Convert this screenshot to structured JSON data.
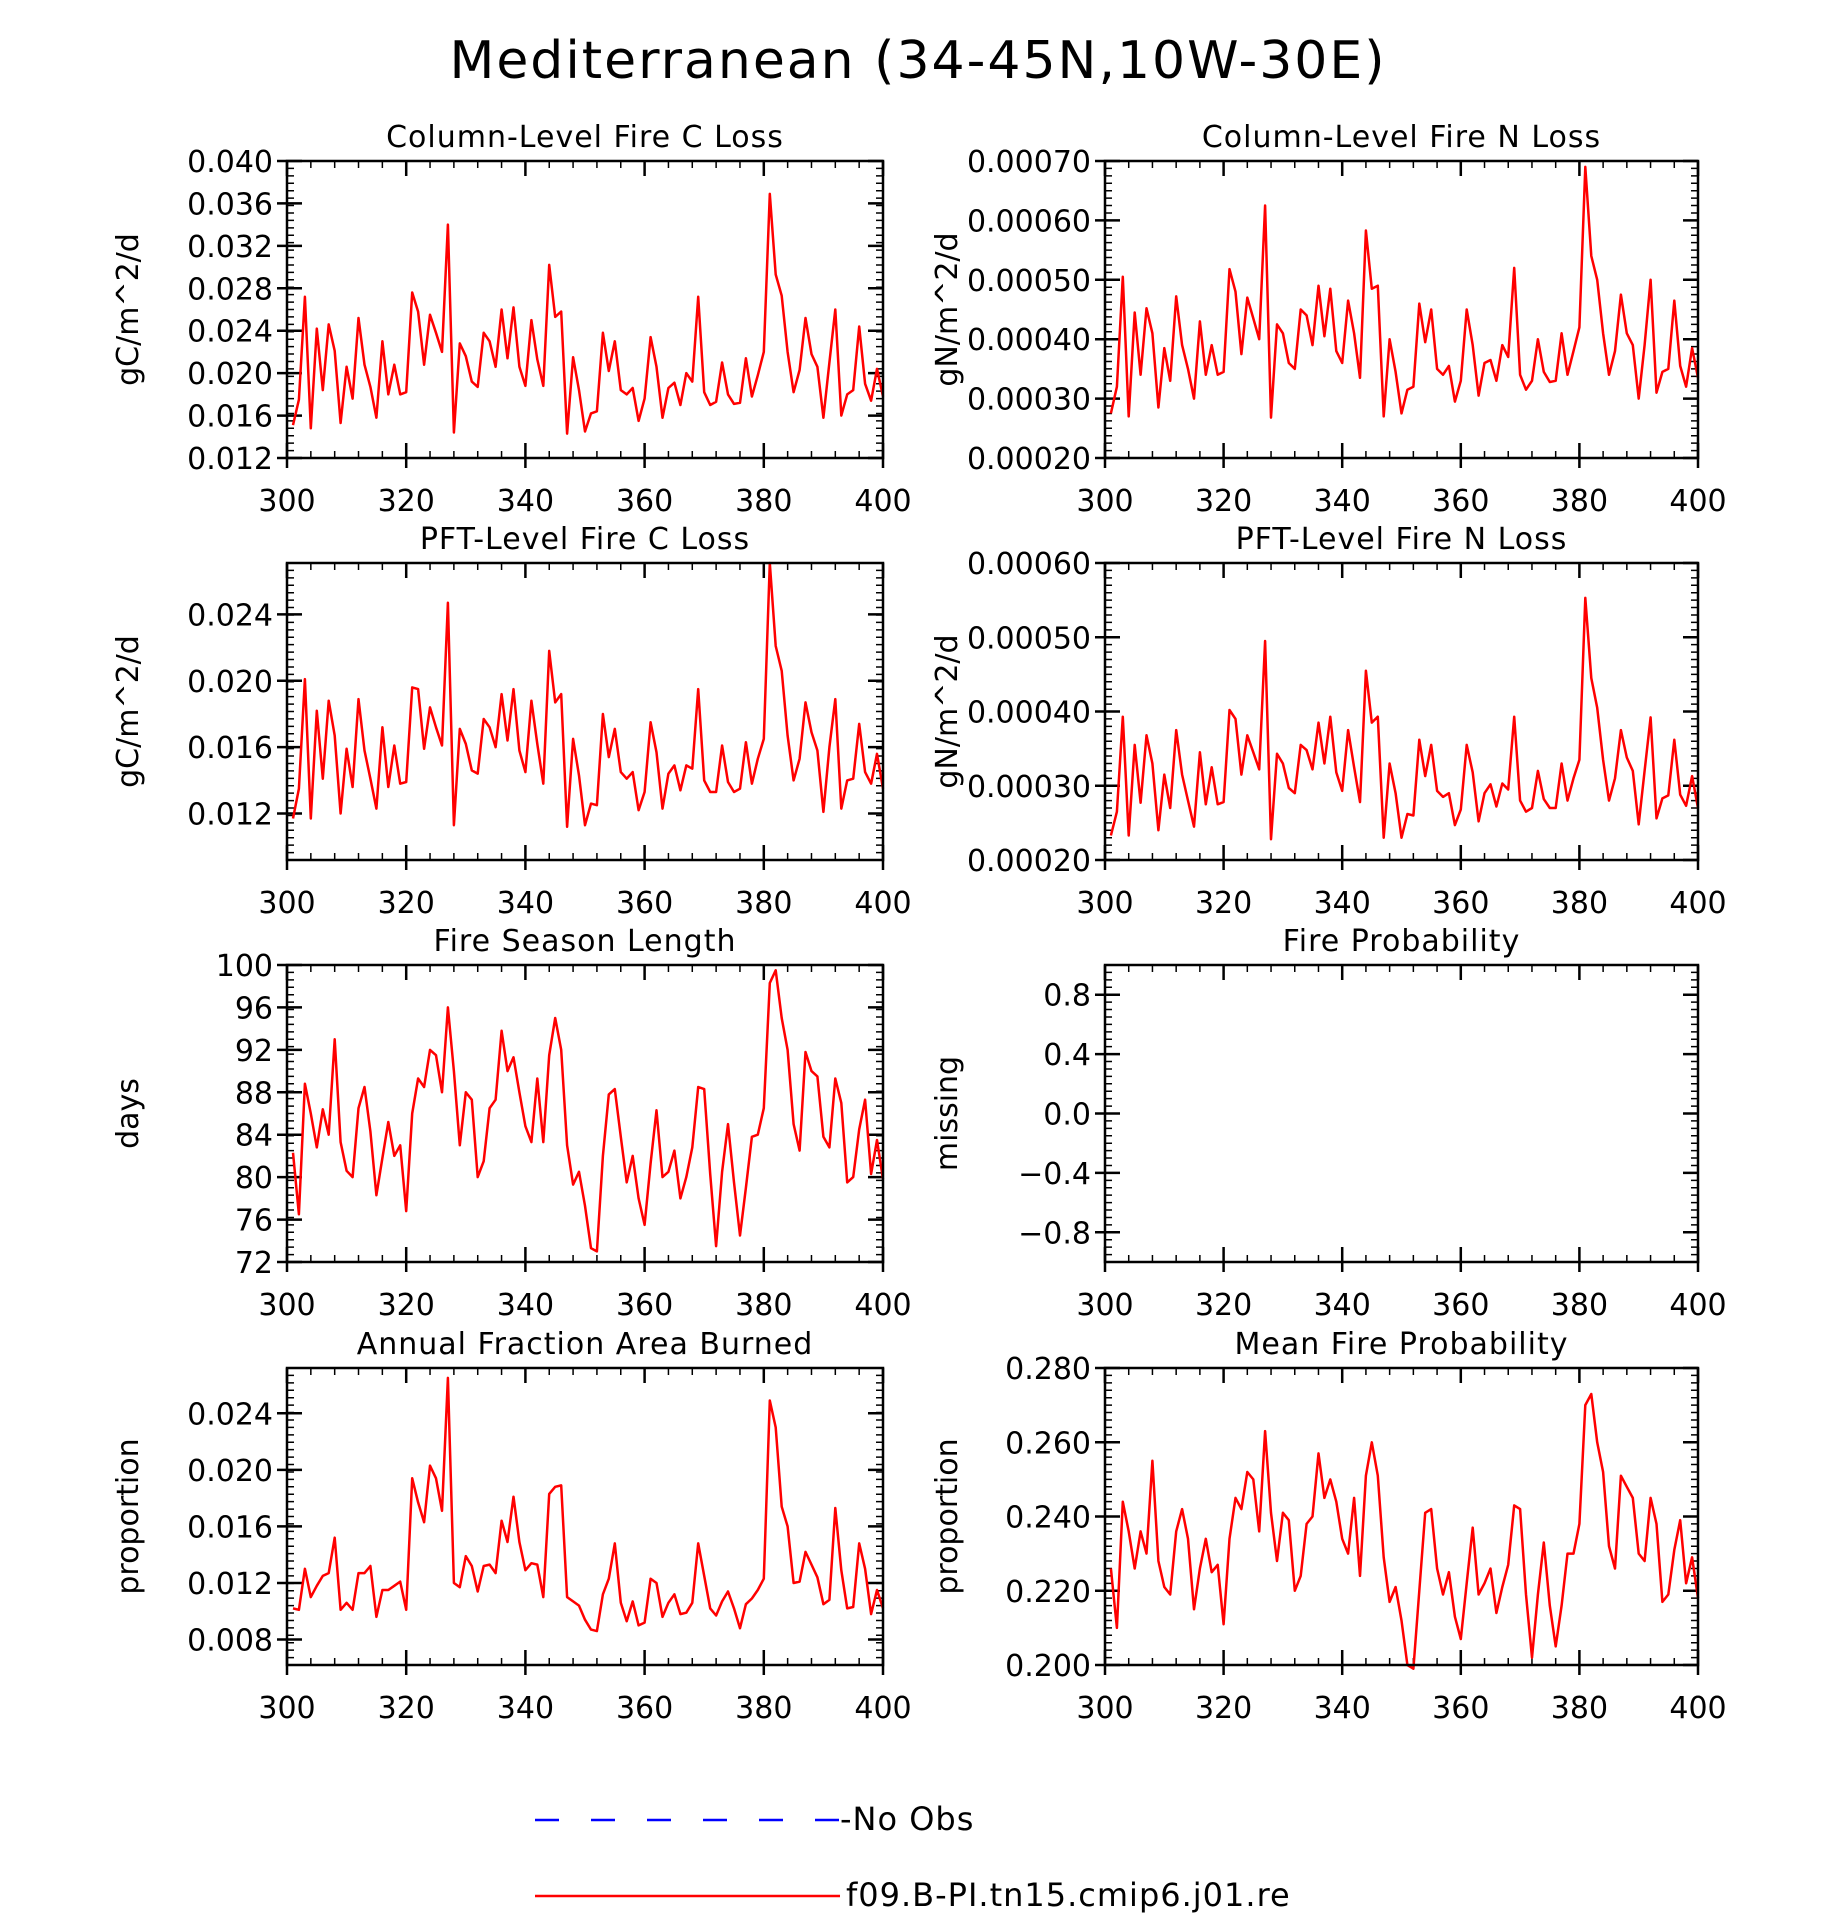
{
  "figure": {
    "title": "Mediterranean (34-45N,10W-30E)",
    "colors": {
      "model_line": "#ff0000",
      "obs_line": "#0000ff",
      "axis": "#000000"
    }
  },
  "legend": {
    "entries": [
      {
        "label": "-No Obs",
        "color": "#0000ff",
        "style": "dashed"
      },
      {
        "label": "f09.B-PI.tn15.cmip6.j01.re",
        "color": "#ff0000",
        "style": "solid"
      }
    ]
  },
  "chart_data": [
    {
      "type": "line",
      "title": "Column-Level Fire C Loss",
      "ylabel": "gC/m^2/d",
      "xlim": [
        300,
        400
      ],
      "xticks": [
        300,
        320,
        340,
        360,
        380,
        400
      ],
      "ylim": [
        0.012,
        0.04
      ],
      "yticks": [
        "0.012",
        "0.016",
        "0.020",
        "0.024",
        "0.028",
        "0.032",
        "0.036",
        "0.040"
      ],
      "x_start": 301,
      "series": [
        {
          "name": "f09.B-PI.tn15.cmip6.j01.re",
          "values": [
            0.0151,
            0.0175,
            0.0272,
            0.0148,
            0.0242,
            0.0184,
            0.0246,
            0.0221,
            0.0153,
            0.0206,
            0.0176,
            0.0252,
            0.0208,
            0.0187,
            0.0158,
            0.023,
            0.018,
            0.0208,
            0.018,
            0.0182,
            0.0276,
            0.0258,
            0.0208,
            0.0255,
            0.0238,
            0.022,
            0.034,
            0.0144,
            0.0228,
            0.0216,
            0.0192,
            0.0187,
            0.0238,
            0.023,
            0.0206,
            0.026,
            0.0214,
            0.0262,
            0.0206,
            0.0188,
            0.025,
            0.0213,
            0.0188,
            0.0302,
            0.0253,
            0.0258,
            0.0143,
            0.0215,
            0.0184,
            0.0145,
            0.0162,
            0.0164,
            0.0238,
            0.0202,
            0.023,
            0.0184,
            0.018,
            0.0186,
            0.0155,
            0.0176,
            0.0234,
            0.0206,
            0.0158,
            0.0186,
            0.0191,
            0.017,
            0.02,
            0.0192,
            0.0272,
            0.0182,
            0.017,
            0.0173,
            0.021,
            0.018,
            0.0171,
            0.0172,
            0.0214,
            0.0178,
            0.0198,
            0.022,
            0.0369,
            0.0293,
            0.0273,
            0.022,
            0.0182,
            0.0203,
            0.0252,
            0.0218,
            0.0206,
            0.0158,
            0.021,
            0.026,
            0.016,
            0.018,
            0.0184,
            0.0244,
            0.019,
            0.0174,
            0.0204,
            0.0178
          ]
        }
      ]
    },
    {
      "type": "line",
      "title": "Column-Level Fire N Loss",
      "ylabel": "gN/m^2/d",
      "xlim": [
        300,
        400
      ],
      "xticks": [
        300,
        320,
        340,
        360,
        380,
        400
      ],
      "ylim": [
        0.0002,
        0.0007
      ],
      "yticks": [
        "0.00020",
        "0.00030",
        "0.00040",
        "0.00050",
        "0.00060",
        "0.00070"
      ],
      "x_start": 301,
      "series": [
        {
          "name": "f09.B-PI.tn15.cmip6.j01.re",
          "values": [
            0.000275,
            0.00032,
            0.000505,
            0.00027,
            0.000445,
            0.00034,
            0.000452,
            0.00041,
            0.000285,
            0.000385,
            0.00033,
            0.000472,
            0.00039,
            0.00035,
            0.0003,
            0.00043,
            0.00034,
            0.00039,
            0.00034,
            0.000345,
            0.000518,
            0.00048,
            0.000375,
            0.00047,
            0.000435,
            0.0004,
            0.000625,
            0.000268,
            0.000425,
            0.00041,
            0.00036,
            0.00035,
            0.00045,
            0.00044,
            0.00039,
            0.00049,
            0.000405,
            0.000485,
            0.00038,
            0.00036,
            0.000465,
            0.00041,
            0.000335,
            0.000583,
            0.000485,
            0.00049,
            0.00027,
            0.0004,
            0.000345,
            0.000275,
            0.000315,
            0.00032,
            0.00046,
            0.000395,
            0.00045,
            0.00035,
            0.00034,
            0.000355,
            0.000295,
            0.00033,
            0.00045,
            0.00039,
            0.000305,
            0.00036,
            0.000365,
            0.00033,
            0.00039,
            0.00037,
            0.00052,
            0.00034,
            0.000315,
            0.00033,
            0.0004,
            0.000345,
            0.000328,
            0.00033,
            0.00041,
            0.00034,
            0.00038,
            0.00042,
            0.00069,
            0.00054,
            0.0005,
            0.00041,
            0.00034,
            0.00038,
            0.000475,
            0.00041,
            0.00039,
            0.0003,
            0.00039,
            0.0005,
            0.00031,
            0.000345,
            0.00035,
            0.000465,
            0.000355,
            0.00032,
            0.000385,
            0.000335
          ]
        }
      ]
    },
    {
      "type": "line",
      "title": "PFT-Level Fire C Loss",
      "ylabel": "gC/m^2/d",
      "xlim": [
        300,
        400
      ],
      "xticks": [
        300,
        320,
        340,
        360,
        380,
        400
      ],
      "ylim": [
        0.0092,
        0.0271
      ],
      "yticks": [
        "0.012",
        "0.016",
        "0.020",
        "0.024"
      ],
      "x_start": 301,
      "series": [
        {
          "name": "f09.B-PI.tn15.cmip6.j01.re",
          "values": [
            0.0117,
            0.0135,
            0.0201,
            0.0117,
            0.0182,
            0.0141,
            0.0188,
            0.0167,
            0.012,
            0.0159,
            0.0136,
            0.0189,
            0.0158,
            0.0141,
            0.0123,
            0.0172,
            0.0136,
            0.0161,
            0.0138,
            0.0139,
            0.0196,
            0.0195,
            0.0159,
            0.0184,
            0.0172,
            0.0161,
            0.0247,
            0.0113,
            0.0171,
            0.0162,
            0.0146,
            0.0144,
            0.0177,
            0.0172,
            0.016,
            0.0192,
            0.0164,
            0.0195,
            0.0158,
            0.0145,
            0.0188,
            0.0162,
            0.0138,
            0.0218,
            0.0187,
            0.0192,
            0.0112,
            0.0165,
            0.0143,
            0.0113,
            0.0126,
            0.0125,
            0.018,
            0.0154,
            0.0171,
            0.0145,
            0.0141,
            0.0145,
            0.0122,
            0.0133,
            0.0175,
            0.0157,
            0.0123,
            0.0144,
            0.0149,
            0.0134,
            0.0149,
            0.0147,
            0.0195,
            0.014,
            0.0133,
            0.0133,
            0.0161,
            0.0139,
            0.0133,
            0.0135,
            0.0163,
            0.0138,
            0.0153,
            0.0165,
            0.0271,
            0.0221,
            0.0206,
            0.0167,
            0.014,
            0.0153,
            0.0187,
            0.0169,
            0.0158,
            0.0121,
            0.016,
            0.0189,
            0.0123,
            0.014,
            0.0141,
            0.0174,
            0.0145,
            0.0138,
            0.0156,
            0.0135
          ]
        }
      ]
    },
    {
      "type": "line",
      "title": "PFT-Level Fire N Loss",
      "ylabel": "gN/m^2/d",
      "xlim": [
        300,
        400
      ],
      "xticks": [
        300,
        320,
        340,
        360,
        380,
        400
      ],
      "ylim": [
        0.0002,
        0.0006
      ],
      "yticks": [
        "0.00020",
        "0.00030",
        "0.00040",
        "0.00050",
        "0.00060"
      ],
      "x_start": 301,
      "series": [
        {
          "name": "f09.B-PI.tn15.cmip6.j01.re",
          "values": [
            0.000233,
            0.000265,
            0.000393,
            0.000233,
            0.000355,
            0.000277,
            0.000368,
            0.00033,
            0.00024,
            0.000315,
            0.00027,
            0.000375,
            0.000315,
            0.00028,
            0.000245,
            0.000345,
            0.000275,
            0.000325,
            0.000275,
            0.000278,
            0.000402,
            0.00039,
            0.000315,
            0.000368,
            0.000345,
            0.000322,
            0.000495,
            0.000228,
            0.000343,
            0.00033,
            0.000297,
            0.00029,
            0.000355,
            0.000348,
            0.000322,
            0.000385,
            0.00033,
            0.000393,
            0.000318,
            0.000293,
            0.000375,
            0.000325,
            0.000278,
            0.000455,
            0.000385,
            0.000393,
            0.00023,
            0.00033,
            0.00029,
            0.00023,
            0.000262,
            0.00026,
            0.000362,
            0.000313,
            0.000355,
            0.000293,
            0.000285,
            0.00029,
            0.000247,
            0.000268,
            0.000355,
            0.000318,
            0.000252,
            0.00029,
            0.000302,
            0.000272,
            0.000303,
            0.000295,
            0.000393,
            0.00028,
            0.000265,
            0.00027,
            0.00032,
            0.000282,
            0.00027,
            0.00027,
            0.00033,
            0.00028,
            0.00031,
            0.000335,
            0.000553,
            0.000445,
            0.000405,
            0.000335,
            0.00028,
            0.00031,
            0.000375,
            0.000338,
            0.00032,
            0.000248,
            0.00032,
            0.000392,
            0.000256,
            0.000283,
            0.000287,
            0.000362,
            0.000288,
            0.000273,
            0.000313,
            0.00027
          ]
        }
      ]
    },
    {
      "type": "line",
      "title": "Fire Season Length",
      "ylabel": "days",
      "xlim": [
        300,
        400
      ],
      "xticks": [
        300,
        320,
        340,
        360,
        380,
        400
      ],
      "ylim": [
        72,
        100
      ],
      "yticks": [
        "72",
        "76",
        "80",
        "84",
        "88",
        "92",
        "96",
        "100"
      ],
      "x_start": 301,
      "series": [
        {
          "name": "f09.B-PI.tn15.cmip6.j01.re",
          "values": [
            82.3,
            76.5,
            88.8,
            86.0,
            82.8,
            86.4,
            84.0,
            93.0,
            83.3,
            80.6,
            80.0,
            86.5,
            88.5,
            84.3,
            78.3,
            81.8,
            85.2,
            82.0,
            83.0,
            76.8,
            86.0,
            89.3,
            88.5,
            92.0,
            91.5,
            88.0,
            96.0,
            90.0,
            83.0,
            88.0,
            87.3,
            80.0,
            81.5,
            86.5,
            87.3,
            93.8,
            90.0,
            91.3,
            88.0,
            84.8,
            83.3,
            89.3,
            83.3,
            91.5,
            95.0,
            92.0,
            83.0,
            79.3,
            80.5,
            77.3,
            73.3,
            73.0,
            82.0,
            87.8,
            88.3,
            83.8,
            79.5,
            82.0,
            78.0,
            75.5,
            81.3,
            86.3,
            80.0,
            80.5,
            82.5,
            78.0,
            80.0,
            82.8,
            88.5,
            88.3,
            80.3,
            73.5,
            80.5,
            85.0,
            79.5,
            74.5,
            79.0,
            83.8,
            84.0,
            86.5,
            98.3,
            99.5,
            95.0,
            92.0,
            85.0,
            82.5,
            91.8,
            90.0,
            89.5,
            83.8,
            82.8,
            89.3,
            87.0,
            79.5,
            80.0,
            84.5,
            87.3,
            80.3,
            83.5,
            79.8
          ]
        }
      ]
    },
    {
      "type": "line",
      "title": "Fire Probability",
      "ylabel": "missing",
      "xlim": [
        300,
        400
      ],
      "xticks": [
        300,
        320,
        340,
        360,
        380,
        400
      ],
      "ylim": [
        -1.0,
        1.0
      ],
      "yticks": [
        "−0.8",
        "−0.4",
        "0.0",
        "0.4",
        "0.8"
      ],
      "x_start": 301,
      "series": []
    },
    {
      "type": "line",
      "title": "Annual Fraction Area Burned",
      "ylabel": "proportion",
      "xlim": [
        300,
        400
      ],
      "xticks": [
        300,
        320,
        340,
        360,
        380,
        400
      ],
      "ylim": [
        0.0062,
        0.0272
      ],
      "yticks": [
        "0.008",
        "0.012",
        "0.016",
        "0.020",
        "0.024"
      ],
      "x_start": 301,
      "series": [
        {
          "name": "f09.B-PI.tn15.cmip6.j01.re",
          "values": [
            0.0102,
            0.0101,
            0.013,
            0.011,
            0.0118,
            0.0125,
            0.0127,
            0.0152,
            0.0101,
            0.0106,
            0.0101,
            0.0127,
            0.0127,
            0.0132,
            0.0096,
            0.0115,
            0.0115,
            0.0118,
            0.0121,
            0.0101,
            0.0194,
            0.0177,
            0.0163,
            0.0203,
            0.0194,
            0.0171,
            0.0265,
            0.012,
            0.0117,
            0.0139,
            0.0132,
            0.0114,
            0.0132,
            0.0133,
            0.0127,
            0.0164,
            0.0149,
            0.0181,
            0.0149,
            0.0129,
            0.0134,
            0.0133,
            0.011,
            0.0183,
            0.0188,
            0.0189,
            0.011,
            0.0107,
            0.0104,
            0.0094,
            0.0087,
            0.0086,
            0.0112,
            0.0123,
            0.0148,
            0.0106,
            0.0093,
            0.0107,
            0.009,
            0.0092,
            0.0123,
            0.012,
            0.0096,
            0.0106,
            0.0112,
            0.0098,
            0.0099,
            0.0106,
            0.0148,
            0.0125,
            0.0102,
            0.0097,
            0.0107,
            0.0114,
            0.0102,
            0.0088,
            0.0105,
            0.0109,
            0.0115,
            0.0123,
            0.0249,
            0.023,
            0.0174,
            0.016,
            0.012,
            0.0121,
            0.0142,
            0.0133,
            0.0124,
            0.0105,
            0.0108,
            0.0173,
            0.0129,
            0.0102,
            0.0103,
            0.0148,
            0.013,
            0.0098,
            0.0115,
            0.0102
          ]
        }
      ]
    },
    {
      "type": "line",
      "title": "Mean Fire Probability",
      "ylabel": "proportion",
      "xlim": [
        300,
        400
      ],
      "xticks": [
        300,
        320,
        340,
        360,
        380,
        400
      ],
      "ylim": [
        0.2,
        0.28
      ],
      "yticks": [
        "0.200",
        "0.220",
        "0.240",
        "0.260",
        "0.280"
      ],
      "x_start": 301,
      "series": [
        {
          "name": "f09.B-PI.tn15.cmip6.j01.re",
          "values": [
            0.226,
            0.21,
            0.244,
            0.236,
            0.226,
            0.236,
            0.23,
            0.255,
            0.228,
            0.221,
            0.219,
            0.236,
            0.242,
            0.234,
            0.215,
            0.226,
            0.234,
            0.225,
            0.227,
            0.211,
            0.234,
            0.245,
            0.242,
            0.252,
            0.25,
            0.236,
            0.263,
            0.241,
            0.228,
            0.241,
            0.239,
            0.22,
            0.224,
            0.238,
            0.24,
            0.257,
            0.245,
            0.25,
            0.244,
            0.234,
            0.23,
            0.245,
            0.224,
            0.251,
            0.26,
            0.251,
            0.229,
            0.217,
            0.221,
            0.212,
            0.2,
            0.199,
            0.22,
            0.241,
            0.242,
            0.226,
            0.219,
            0.225,
            0.213,
            0.207,
            0.222,
            0.237,
            0.219,
            0.222,
            0.226,
            0.214,
            0.221,
            0.227,
            0.243,
            0.242,
            0.219,
            0.202,
            0.219,
            0.233,
            0.216,
            0.205,
            0.216,
            0.23,
            0.23,
            0.238,
            0.27,
            0.273,
            0.26,
            0.252,
            0.232,
            0.226,
            0.251,
            0.248,
            0.245,
            0.23,
            0.228,
            0.245,
            0.238,
            0.217,
            0.219,
            0.231,
            0.239,
            0.222,
            0.229,
            0.218
          ]
        }
      ]
    }
  ]
}
